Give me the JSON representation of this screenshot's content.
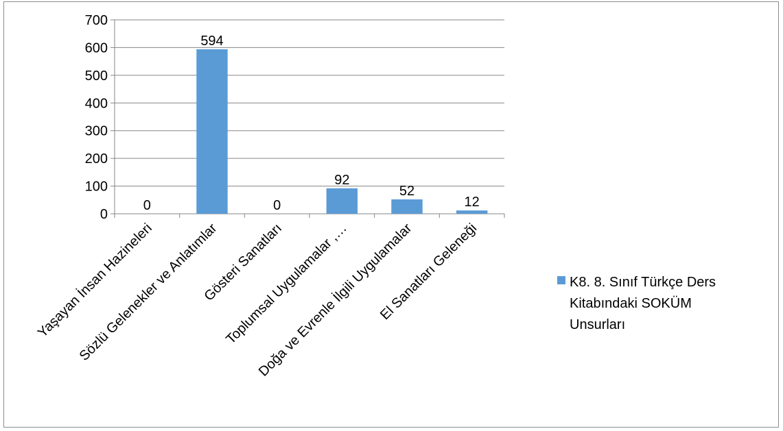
{
  "chart_data": {
    "type": "bar",
    "categories": [
      "Yaşayan İnsan Hazineleri",
      "Sözlü Gelenekler ve Anlatımlar",
      "Gösteri Sanatları",
      "Toplumsal Uygulamalar ,…",
      "Doğa ve Evrenle İlgili Uygulamalar",
      "El Sanatları Geleneği"
    ],
    "series": [
      {
        "name": "K8. 8. Sınıf Türkçe Ders Kitabındaki SOKÜM Unsurları",
        "values": [
          0,
          594,
          0,
          92,
          52,
          12
        ],
        "color": "#5b9bd5"
      }
    ],
    "data_labels": [
      "0",
      "594",
      "0",
      "92",
      "52",
      "12"
    ],
    "y_ticks": [
      0,
      100,
      200,
      300,
      400,
      500,
      600,
      700
    ],
    "ylim": [
      0,
      700
    ],
    "grid": true,
    "legend_position": "right",
    "legend_lines": [
      "K8. 8. Sınıf Türkçe Ders",
      "Kitabındaki SOKÜM",
      "Unsurları"
    ]
  }
}
